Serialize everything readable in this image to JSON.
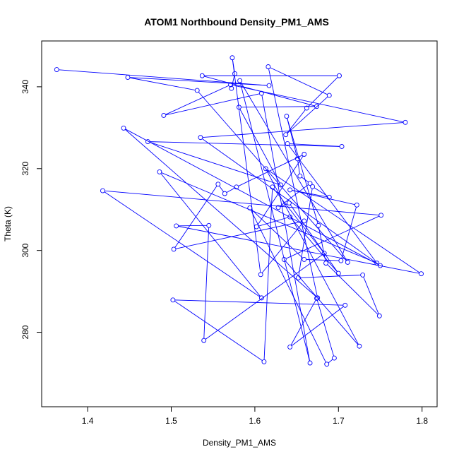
{
  "chart_data": {
    "type": "line",
    "title": "ATOM1 Northbound Density_PM1_AMS",
    "xlabel": "Density_PM1_AMS",
    "ylabel": "Theta (K)",
    "xlim": [
      1.345,
      1.818
    ],
    "ylim": [
      261.8,
      351.2
    ],
    "xticks": [
      1.4,
      1.5,
      1.6,
      1.7,
      1.8
    ],
    "yticks": [
      280,
      300,
      320,
      340
    ],
    "grid": false,
    "legend": "none",
    "series_color": "#0000ff",
    "points": [
      [
        1.363,
        344.2
      ],
      [
        1.617,
        340.3
      ],
      [
        1.448,
        342.3
      ],
      [
        1.531,
        339.1
      ],
      [
        1.711,
        297.1
      ],
      [
        1.582,
        341.5
      ],
      [
        1.666,
        272.5
      ],
      [
        1.608,
        338.4
      ],
      [
        1.491,
        333.0
      ],
      [
        1.571,
        340.5
      ],
      [
        1.78,
        331.3
      ],
      [
        1.535,
        327.6
      ],
      [
        1.75,
        296.3
      ],
      [
        1.443,
        329.9
      ],
      [
        1.675,
        288.4
      ],
      [
        1.616,
        344.9
      ],
      [
        1.689,
        337.9
      ],
      [
        1.637,
        328.3
      ],
      [
        1.662,
        334.8
      ],
      [
        1.701,
        342.7
      ],
      [
        1.537,
        342.7
      ],
      [
        1.674,
        335.2
      ],
      [
        1.581,
        335.0
      ],
      [
        1.631,
        316.0
      ],
      [
        1.472,
        326.6
      ],
      [
        1.704,
        325.4
      ],
      [
        1.639,
        326.1
      ],
      [
        1.746,
        296.9
      ],
      [
        1.486,
        319.2
      ],
      [
        1.608,
        288.4
      ],
      [
        1.418,
        314.6
      ],
      [
        1.751,
        308.6
      ],
      [
        1.635,
        297.8
      ],
      [
        1.725,
        276.6
      ],
      [
        1.613,
        320.0
      ],
      [
        1.799,
        294.3
      ],
      [
        1.506,
        306.0
      ],
      [
        1.545,
        306.1
      ],
      [
        1.539,
        278.0
      ],
      [
        1.683,
        299.3
      ],
      [
        1.621,
        315.5
      ],
      [
        1.611,
        272.8
      ],
      [
        1.502,
        287.9
      ],
      [
        1.708,
        286.6
      ],
      [
        1.642,
        276.4
      ],
      [
        1.674,
        288.3
      ],
      [
        1.695,
        273.7
      ],
      [
        1.686,
        272.2
      ],
      [
        1.594,
        310.4
      ],
      [
        1.659,
        297.8
      ],
      [
        1.703,
        297.5
      ],
      [
        1.722,
        311.1
      ],
      [
        1.642,
        314.8
      ],
      [
        1.689,
        313.0
      ],
      [
        1.669,
        315.6
      ],
      [
        1.652,
        293.3
      ],
      [
        1.729,
        294.0
      ],
      [
        1.749,
        284.0
      ],
      [
        1.685,
        296.9
      ],
      [
        1.676,
        306.1
      ],
      [
        1.638,
        332.8
      ],
      [
        1.651,
        322.4
      ],
      [
        1.654,
        318.2
      ],
      [
        1.666,
        316.4
      ],
      [
        1.628,
        310.5
      ],
      [
        1.641,
        311.6
      ],
      [
        1.7,
        294.4
      ],
      [
        1.642,
        308.2
      ],
      [
        1.602,
        305.8
      ],
      [
        1.659,
        323.5
      ],
      [
        1.578,
        315.5
      ],
      [
        1.564,
        313.9
      ],
      [
        1.556,
        316.2
      ],
      [
        1.503,
        300.3
      ],
      [
        1.659,
        307.2
      ],
      [
        1.607,
        294.1
      ],
      [
        1.573,
        347.1
      ],
      [
        1.576,
        343.2
      ],
      [
        1.572,
        339.6
      ]
    ]
  }
}
